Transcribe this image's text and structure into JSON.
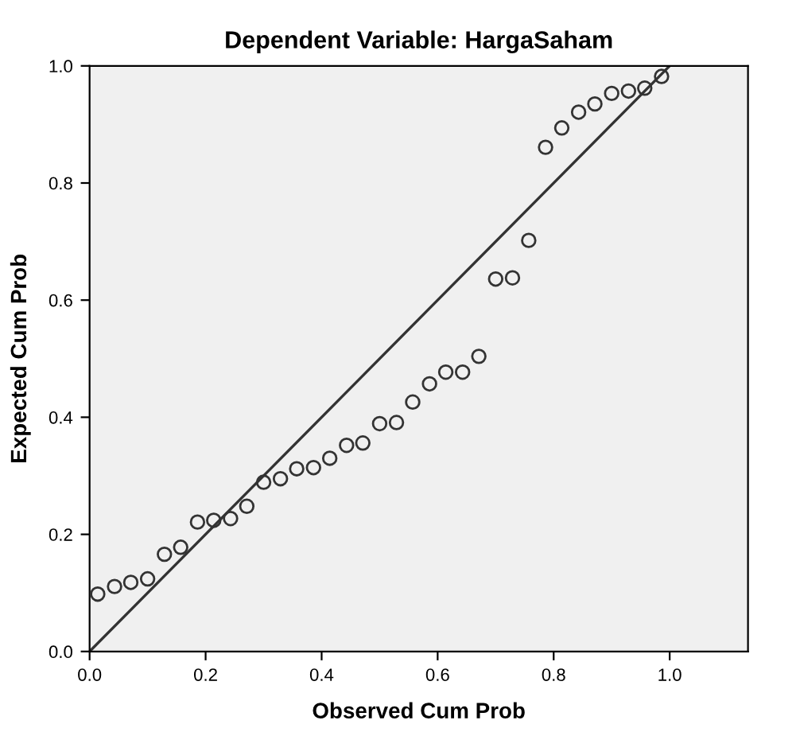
{
  "chart_data": {
    "type": "scatter",
    "title": "Dependent Variable: HargaSaham",
    "xlabel": "Observed Cum Prob",
    "ylabel": "Expected Cum Prob",
    "xlim": [
      0,
      1.135
    ],
    "ylim": [
      0,
      1.0
    ],
    "xticks": [
      {
        "value": 0,
        "label": "0.0"
      },
      {
        "value": 0.2,
        "label": "0.2"
      },
      {
        "value": 0.4,
        "label": "0.4"
      },
      {
        "value": 0.6,
        "label": "0.6"
      },
      {
        "value": 0.8,
        "label": "0.8"
      },
      {
        "value": 1.0,
        "label": "1.0"
      }
    ],
    "yticks": [
      {
        "value": 0,
        "label": "0.0"
      },
      {
        "value": 0.2,
        "label": "0.2"
      },
      {
        "value": 0.4,
        "label": "0.4"
      },
      {
        "value": 0.6,
        "label": "0.6"
      },
      {
        "value": 0.8,
        "label": "0.8"
      },
      {
        "value": 1.0,
        "label": "1.0"
      }
    ],
    "grid": false,
    "series": [
      {
        "color": "#333333",
        "marker": "circle",
        "x": [
          0.014,
          0.043,
          0.071,
          0.1,
          0.129,
          0.157,
          0.186,
          0.214,
          0.243,
          0.271,
          0.3,
          0.329,
          0.357,
          0.386,
          0.414,
          0.443,
          0.471,
          0.5,
          0.529,
          0.557,
          0.586,
          0.614,
          0.643,
          0.671,
          0.7,
          0.729,
          0.757,
          0.786,
          0.814,
          0.843,
          0.871,
          0.9,
          0.929,
          0.957,
          0.986
        ],
        "values": [
          0.098,
          0.111,
          0.118,
          0.124,
          0.166,
          0.178,
          0.221,
          0.224,
          0.227,
          0.248,
          0.289,
          0.295,
          0.312,
          0.314,
          0.33,
          0.352,
          0.356,
          0.389,
          0.391,
          0.426,
          0.457,
          0.477,
          0.477,
          0.504,
          0.636,
          0.638,
          0.702,
          0.861,
          0.894,
          0.921,
          0.935,
          0.953,
          0.957,
          0.962,
          0.982
        ]
      },
      {
        "type": "line",
        "color": "#333333",
        "marker": "none",
        "x": [
          0,
          1
        ],
        "values": [
          0,
          1
        ]
      }
    ]
  }
}
